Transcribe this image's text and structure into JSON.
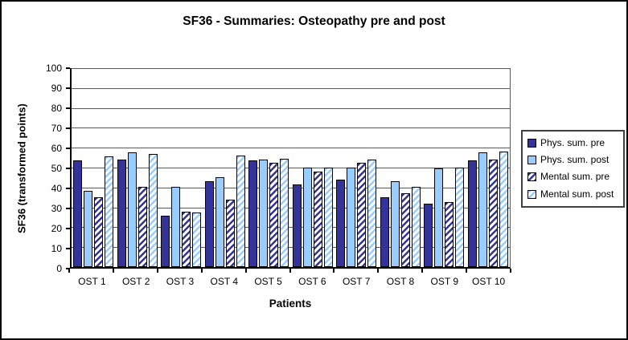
{
  "title": "SF36 - Summaries: Osteopathy pre and post",
  "chart_data": {
    "type": "bar",
    "title": "SF36 - Summaries: Osteopathy pre and post",
    "xlabel": "Patients",
    "ylabel": "SF36 (transformed points)",
    "ylim": [
      0,
      100
    ],
    "ytick_step": 10,
    "grid": true,
    "legend_position": "right",
    "categories": [
      "OST 1",
      "OST 2",
      "OST 3",
      "OST 4",
      "OST 5",
      "OST 6",
      "OST 7",
      "OST 8",
      "OST 9",
      "OST 10"
    ],
    "series": [
      {
        "name": "Phys. sum. pre",
        "style": "solid-dark",
        "values": [
          53.5,
          54,
          26,
          43,
          53.5,
          41.5,
          44,
          35,
          32,
          53.5
        ]
      },
      {
        "name": "Phys. sum. post",
        "style": "solid-light",
        "values": [
          38.5,
          57.5,
          40.5,
          45,
          54,
          50,
          50,
          43,
          49.5,
          57.5
        ]
      },
      {
        "name": "Mental sum. pre",
        "style": "hatch-dark",
        "values": [
          35,
          40.5,
          28,
          34,
          52.5,
          48,
          52.5,
          37,
          32.5,
          54
        ]
      },
      {
        "name": "Mental sum. post",
        "style": "hatch-light",
        "values": [
          55.5,
          57,
          27.5,
          56,
          54.5,
          50,
          54,
          40.5,
          50,
          58
        ]
      }
    ]
  },
  "colors": {
    "series_dark_blue": "#333399",
    "series_light_blue": "#99CCFF",
    "hatch_background": "#FFFFFF",
    "gridline": "#595959",
    "axis": "#000000",
    "figure_border": "#000000",
    "legend_border": "#404040",
    "background": "#FFFFFF",
    "text": "#000000"
  }
}
